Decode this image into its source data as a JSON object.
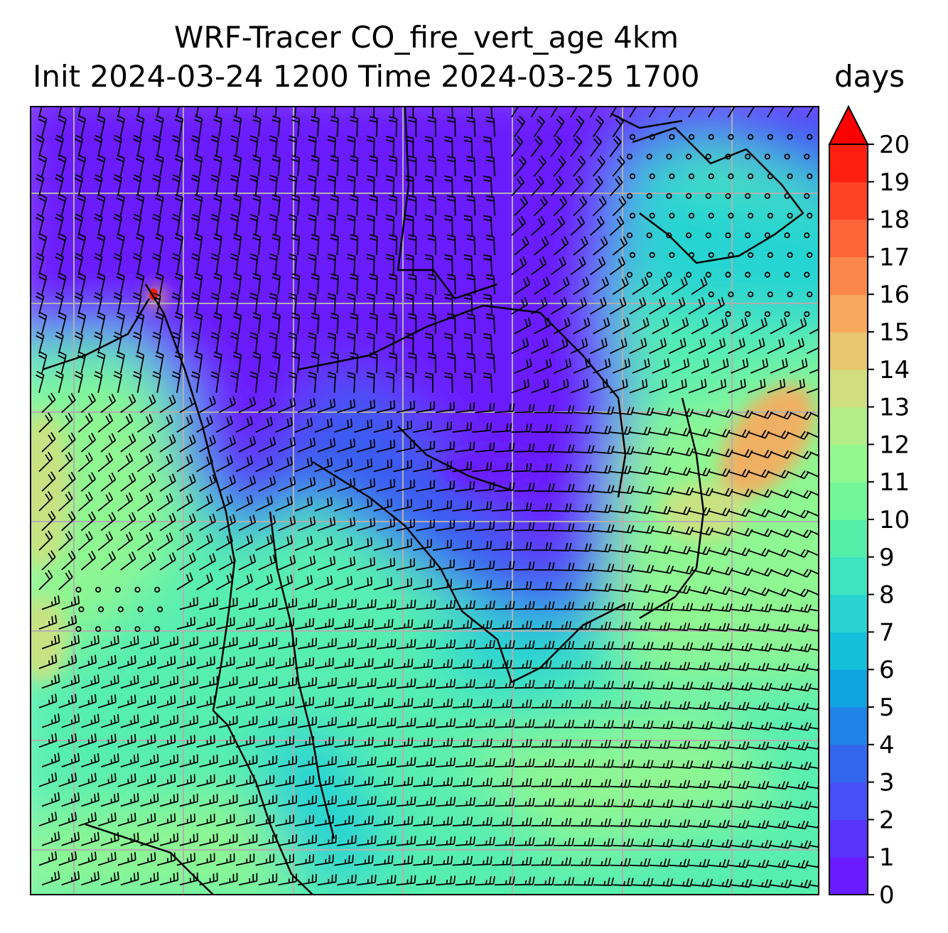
{
  "title": {
    "line1": "WRF-Tracer CO_fire_vert_age 4km",
    "line2": "Init 2024-03-24 1200 Time 2024-03-25 1700"
  },
  "colorbar": {
    "unit": "days",
    "ticks": [
      "0",
      "1",
      "2",
      "3",
      "4",
      "5",
      "6",
      "7",
      "8",
      "9",
      "10",
      "11",
      "12",
      "13",
      "14",
      "15",
      "16",
      "17",
      "18",
      "19",
      "20"
    ],
    "extend": "max",
    "colors": [
      "#6a1cfe",
      "#5a34fb",
      "#4650f6",
      "#3366ef",
      "#1f84e8",
      "#10a3e2",
      "#14bfdc",
      "#28d4d2",
      "#3ee3c0",
      "#56efa9",
      "#72f798",
      "#94f890",
      "#b4ee88",
      "#d0de7e",
      "#e8c56e",
      "#f6a95c",
      "#fb874a",
      "#fd6438",
      "#fe4224",
      "#fe1f10"
    ],
    "over_color": "#ff0000"
  },
  "map": {
    "field_colors": {
      "purple": "#6a1cfe",
      "blue": "#3a5cf2",
      "cyan": "#28d4d2",
      "aqua": "#56efb0",
      "green": "#8ff792",
      "yellowgreen": "#c8e282",
      "orange": "#f0b064",
      "red": "#ff1a0a"
    },
    "gridline_color": "#b0b0b0",
    "coastline_color": "#000000",
    "barb_color": "#000000"
  }
}
